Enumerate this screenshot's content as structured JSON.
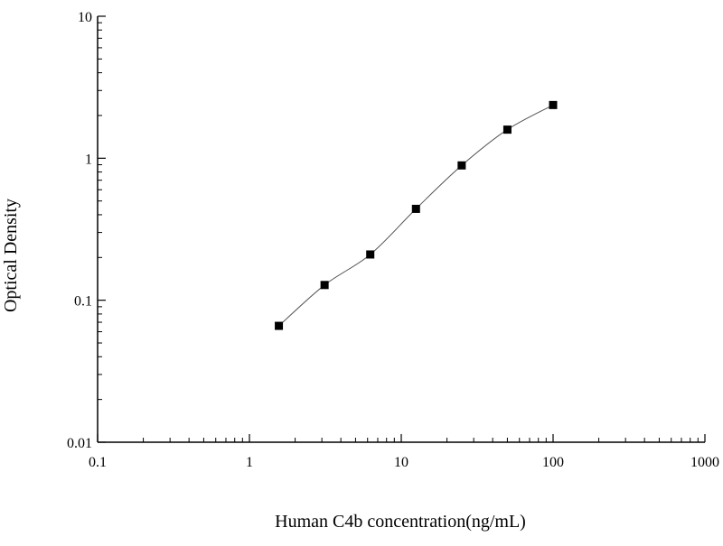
{
  "chart_data": {
    "type": "scatter",
    "title": "",
    "xlabel": "Human C4b concentration(ng/mL)",
    "ylabel": "Optical Density",
    "x_scale": "log",
    "y_scale": "log",
    "xlim": [
      0.1,
      1000
    ],
    "ylim": [
      0.01,
      10
    ],
    "x_ticks": [
      {
        "value": 0.1,
        "label": "0.1"
      },
      {
        "value": 1,
        "label": "1"
      },
      {
        "value": 10,
        "label": "10"
      },
      {
        "value": 100,
        "label": "100"
      },
      {
        "value": 1000,
        "label": "1000"
      }
    ],
    "y_ticks": [
      {
        "value": 0.01,
        "label": "0.01"
      },
      {
        "value": 0.1,
        "label": "0.1"
      },
      {
        "value": 1,
        "label": "1"
      },
      {
        "value": 10,
        "label": "10"
      }
    ],
    "grid": false,
    "legend": "none",
    "series": [
      {
        "marker": "square",
        "color": "#000000",
        "fit_line": true,
        "points": [
          {
            "x": 1.5625,
            "y": 0.066
          },
          {
            "x": 3.125,
            "y": 0.128
          },
          {
            "x": 6.25,
            "y": 0.21
          },
          {
            "x": 12.5,
            "y": 0.44
          },
          {
            "x": 25,
            "y": 0.89
          },
          {
            "x": 50,
            "y": 1.59
          },
          {
            "x": 100,
            "y": 2.37
          }
        ]
      }
    ]
  }
}
